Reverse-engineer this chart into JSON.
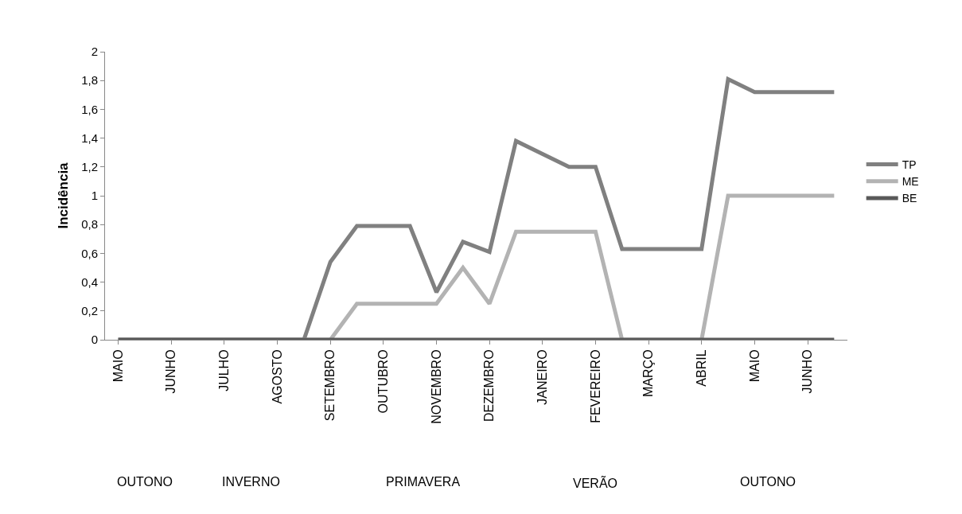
{
  "chart_data": {
    "type": "line",
    "ylabel": "Incidência",
    "categories": [
      "MAIO",
      null,
      "JUNHO",
      null,
      "JULHO",
      null,
      "AGOSTO",
      null,
      "SETEMBRO",
      null,
      "OUTUBRO",
      null,
      "NOVEMBRO",
      null,
      "DEZEMBRO",
      null,
      "JANEIRO",
      null,
      "FEVEREIRO",
      null,
      "MARÇO",
      null,
      "ABRIL",
      null,
      "MAIO",
      null,
      "JUNHO",
      null
    ],
    "series": [
      {
        "name": "TP",
        "color": "#808080",
        "values": [
          0,
          0,
          0,
          0,
          0,
          0,
          0,
          0,
          0.54,
          0.79,
          0.79,
          0.79,
          0.33,
          0.68,
          0.61,
          1.38,
          1.29,
          1.2,
          1.2,
          0.63,
          0.63,
          0.63,
          0.63,
          1.81,
          1.72,
          1.72,
          1.72,
          1.72
        ]
      },
      {
        "name": "ME",
        "color": "#b3b3b3",
        "values": [
          0,
          0,
          0,
          0,
          0,
          0,
          0,
          0,
          0,
          0.25,
          0.25,
          0.25,
          0.25,
          0.5,
          0.25,
          0.75,
          0.75,
          0.75,
          0.75,
          0,
          0,
          0,
          0,
          1,
          1,
          1,
          1,
          1
        ]
      },
      {
        "name": "BE",
        "color": "#595959",
        "values": [
          0,
          0,
          0,
          0,
          0,
          0,
          0,
          0,
          0,
          0,
          0,
          0,
          0,
          0,
          0,
          0,
          0,
          0,
          0,
          0,
          0,
          0,
          0,
          0,
          0,
          0,
          0,
          0
        ]
      }
    ],
    "ylim": [
      0,
      2
    ],
    "yticks": [
      0,
      {
        "value": 0.2,
        "label": "0,2"
      },
      {
        "value": 0.4,
        "label": "0,4"
      },
      {
        "value": 0.6,
        "label": "0,6"
      },
      {
        "value": 0.8,
        "label": "0,8"
      },
      1,
      {
        "value": 1.2,
        "label": "1,2"
      },
      {
        "value": 1.4,
        "label": "1,4"
      },
      {
        "value": 1.6,
        "label": "1,6"
      },
      {
        "value": 1.8,
        "label": "1,8"
      },
      2
    ],
    "grid": false,
    "legend": "right",
    "marker": "none",
    "line_style": "solid",
    "annotations": [
      "OUTONO",
      "INVERNO",
      "PRIMAVERA",
      "VERÃO",
      "OUTONO"
    ]
  }
}
